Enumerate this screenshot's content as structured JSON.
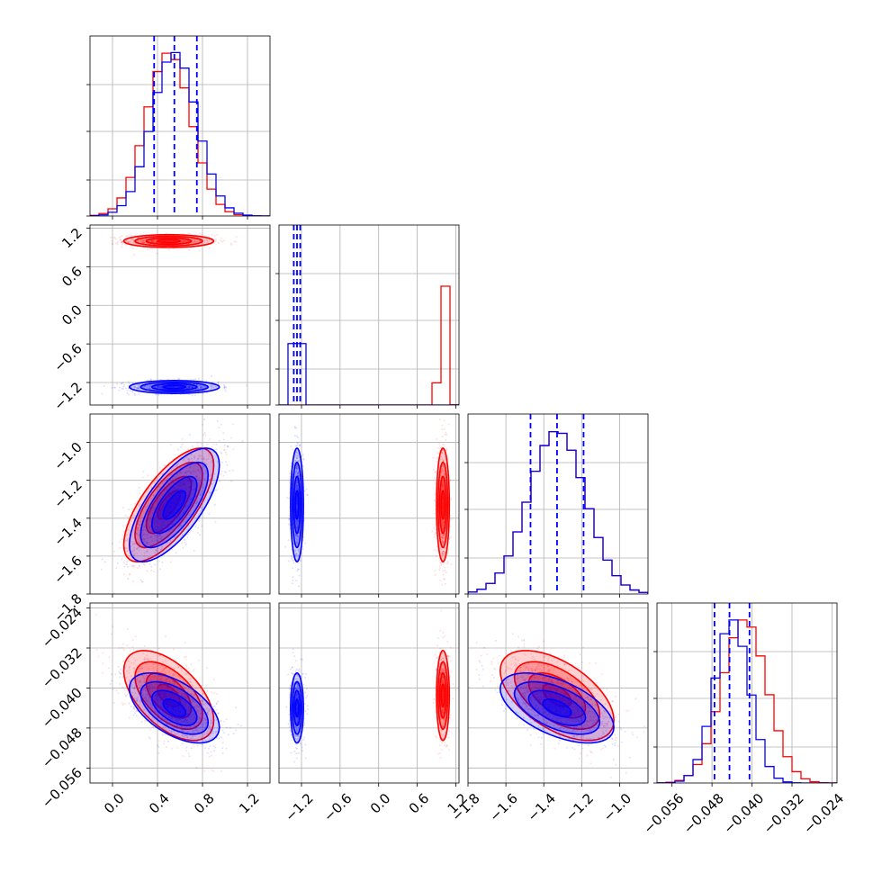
{
  "chart_data": {
    "type": "corner",
    "colors": {
      "a": "#ff0000",
      "b": "#0000ff"
    },
    "grid": true,
    "params": [
      {
        "range": [
          -0.2,
          1.4
        ],
        "ticks": [
          "0.0",
          "0.4",
          "0.8",
          "1.2"
        ],
        "tick_values": [
          0.0,
          0.4,
          0.8,
          1.2
        ]
      },
      {
        "range": [
          -1.55,
          1.25
        ],
        "ticks": [
          "−1.2",
          "−0.6",
          "0.0",
          "0.6",
          "1.2"
        ],
        "tick_values": [
          -1.2,
          -0.6,
          0.0,
          0.6,
          1.2
        ]
      },
      {
        "range": [
          -1.8,
          -0.85
        ],
        "ticks": [
          "−1.8",
          "−1.6",
          "−1.4",
          "−1.2",
          "−1.0"
        ],
        "tick_values": [
          -1.8,
          -1.6,
          -1.4,
          -1.2,
          -1.0
        ]
      },
      {
        "range": [
          -0.059,
          -0.023
        ],
        "ticks": [
          "−0.056",
          "−0.048",
          "−0.040",
          "−0.032",
          "−0.024"
        ],
        "tick_values": [
          -0.056,
          -0.048,
          -0.04,
          -0.032,
          -0.024
        ]
      }
    ],
    "y_ticks": [
      null,
      {
        "labels": [
          "1.2",
          "0.6",
          "0.0",
          "−0.6",
          "−1.2"
        ],
        "values": [
          1.2,
          0.6,
          0.0,
          -0.6,
          -1.2
        ]
      },
      {
        "labels": [
          "−1.0",
          "−1.2",
          "−1.4",
          "−1.6",
          "−1.8"
        ],
        "values": [
          -1.0,
          -1.2,
          -1.4,
          -1.6,
          -1.8
        ]
      },
      {
        "labels": [
          "−0.024",
          "−0.032",
          "−0.040",
          "−0.048",
          "−0.056"
        ],
        "values": [
          -0.024,
          -0.032,
          -0.04,
          -0.048,
          -0.056
        ]
      }
    ],
    "series": [
      {
        "color": "#ff0000",
        "means": [
          0.5,
          1.0,
          -1.33,
          -0.0415
        ],
        "stds": [
          0.2,
          0.05,
          0.15,
          0.0045
        ],
        "corr": [
          [
            0,
            2,
            0.7
          ],
          [
            0,
            3,
            -0.55
          ],
          [
            2,
            3,
            -0.55
          ]
        ]
      },
      {
        "color": "#0000ff",
        "means": [
          0.55,
          -1.27,
          -1.33,
          -0.044
        ],
        "stds": [
          0.2,
          0.05,
          0.15,
          0.0035
        ],
        "corr": [
          [
            0,
            2,
            0.7
          ],
          [
            0,
            3,
            -0.55
          ],
          [
            2,
            3,
            -0.55
          ]
        ]
      }
    ],
    "quantile_lines": [
      [
        0.37,
        0.55,
        0.75
      ],
      [
        -1.32,
        -1.27,
        -1.22
      ],
      [
        -1.47,
        -1.33,
        -1.19
      ],
      [
        -0.0475,
        -0.0445,
        -0.0405
      ]
    ]
  }
}
